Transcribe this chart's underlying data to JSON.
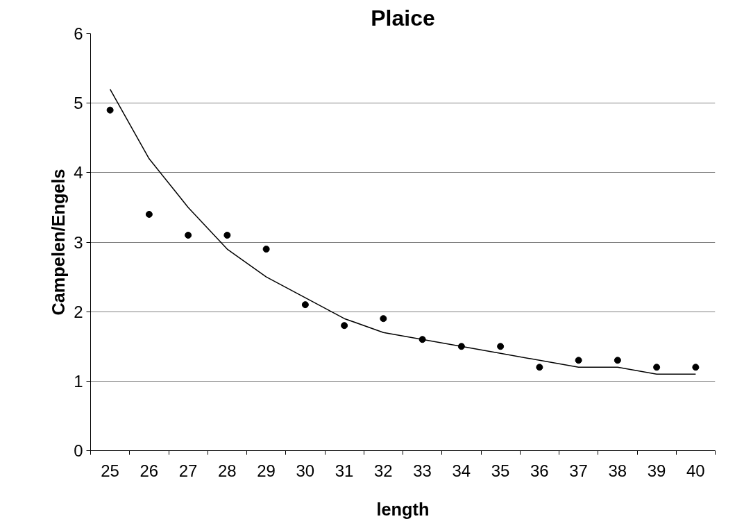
{
  "chart_data": {
    "type": "scatter",
    "title": "Plaice",
    "xlabel": "length",
    "ylabel": "Campelen/Engels",
    "categories": [
      "25",
      "26",
      "27",
      "28",
      "29",
      "30",
      "31",
      "32",
      "33",
      "34",
      "35",
      "36",
      "37",
      "38",
      "39",
      "40"
    ],
    "series": [
      {
        "color": "#000000",
        "marker": "circle",
        "values": [
          4.9,
          3.4,
          3.1,
          3.1,
          2.9,
          2.1,
          1.8,
          1.9,
          1.6,
          1.5,
          1.5,
          1.2,
          1.3,
          1.3,
          1.2,
          1.2
        ]
      },
      {
        "type": "line",
        "color": "#000000",
        "line_style": "solid",
        "values": [
          5.2,
          4.2,
          3.5,
          2.9,
          2.5,
          2.2,
          1.9,
          1.7,
          1.6,
          1.5,
          1.4,
          1.3,
          1.2,
          1.2,
          1.1,
          1.1
        ]
      }
    ],
    "ylim": [
      0,
      6
    ],
    "yticks": [
      0,
      1,
      2,
      3,
      4,
      5,
      6
    ],
    "grid": "y"
  }
}
